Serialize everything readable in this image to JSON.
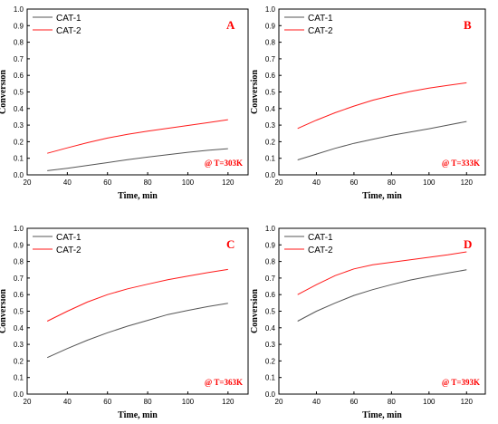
{
  "colors": {
    "CAT-1": "#555555",
    "CAT-2": "#ff1a1a",
    "annotation": "#ff0000",
    "axis": "#000000"
  },
  "chart_data": [
    {
      "type": "line",
      "panel": "A",
      "annotation": "@ T=303K",
      "xlabel": "Time, min",
      "ylabel": "Conversion",
      "xlim": [
        20,
        130
      ],
      "ylim": [
        0,
        1.0
      ],
      "xticks": [
        20,
        40,
        60,
        80,
        100,
        120
      ],
      "yticks": [
        0.0,
        0.1,
        0.2,
        0.3,
        0.4,
        0.5,
        0.6,
        0.7,
        0.8,
        0.9,
        1.0
      ],
      "legend_position": "top-left",
      "series": [
        {
          "name": "CAT-1",
          "x": [
            30,
            40,
            50,
            60,
            70,
            80,
            90,
            100,
            110,
            120
          ],
          "y": [
            0.025,
            0.04,
            0.057,
            0.074,
            0.091,
            0.107,
            0.122,
            0.136,
            0.148,
            0.158
          ]
        },
        {
          "name": "CAT-2",
          "x": [
            30,
            40,
            50,
            60,
            70,
            80,
            90,
            100,
            110,
            120
          ],
          "y": [
            0.13,
            0.163,
            0.194,
            0.222,
            0.245,
            0.264,
            0.281,
            0.298,
            0.315,
            0.333
          ]
        }
      ]
    },
    {
      "type": "line",
      "panel": "B",
      "annotation": "@ T=333K",
      "xlabel": "Time, min",
      "ylabel": "Conversion",
      "xlim": [
        20,
        130
      ],
      "ylim": [
        0,
        1.0
      ],
      "xticks": [
        20,
        40,
        60,
        80,
        100,
        120
      ],
      "yticks": [
        0.0,
        0.1,
        0.2,
        0.3,
        0.4,
        0.5,
        0.6,
        0.7,
        0.8,
        0.9,
        1.0
      ],
      "legend_position": "top-left",
      "series": [
        {
          "name": "CAT-1",
          "x": [
            30,
            40,
            50,
            60,
            70,
            80,
            90,
            100,
            110,
            120
          ],
          "y": [
            0.09,
            0.125,
            0.16,
            0.19,
            0.215,
            0.238,
            0.258,
            0.278,
            0.3,
            0.322
          ]
        },
        {
          "name": "CAT-2",
          "x": [
            30,
            40,
            50,
            60,
            70,
            80,
            90,
            100,
            110,
            120
          ],
          "y": [
            0.28,
            0.33,
            0.375,
            0.415,
            0.45,
            0.478,
            0.503,
            0.523,
            0.54,
            0.555
          ]
        }
      ]
    },
    {
      "type": "line",
      "panel": "C",
      "annotation": "@ T=363K",
      "xlabel": "Time, min",
      "ylabel": "Conversion",
      "xlim": [
        20,
        130
      ],
      "ylim": [
        0,
        1.0
      ],
      "xticks": [
        20,
        40,
        60,
        80,
        100,
        120
      ],
      "yticks": [
        0.0,
        0.1,
        0.2,
        0.3,
        0.4,
        0.5,
        0.6,
        0.7,
        0.8,
        0.9,
        1.0
      ],
      "legend_position": "top-left",
      "series": [
        {
          "name": "CAT-1",
          "x": [
            30,
            40,
            50,
            60,
            70,
            80,
            90,
            100,
            110,
            120
          ],
          "y": [
            0.22,
            0.275,
            0.325,
            0.37,
            0.41,
            0.445,
            0.48,
            0.505,
            0.528,
            0.548
          ]
        },
        {
          "name": "CAT-2",
          "x": [
            30,
            40,
            50,
            60,
            70,
            80,
            90,
            100,
            110,
            120
          ],
          "y": [
            0.44,
            0.5,
            0.555,
            0.6,
            0.635,
            0.663,
            0.69,
            0.712,
            0.733,
            0.752
          ]
        }
      ]
    },
    {
      "type": "line",
      "panel": "D",
      "annotation": "@ T=393K",
      "xlabel": "Time, min",
      "ylabel": "Conversion",
      "xlim": [
        20,
        130
      ],
      "ylim": [
        0,
        1.0
      ],
      "xticks": [
        20,
        40,
        60,
        80,
        100,
        120
      ],
      "yticks": [
        0.0,
        0.1,
        0.2,
        0.3,
        0.4,
        0.5,
        0.6,
        0.7,
        0.8,
        0.9,
        1.0
      ],
      "legend_position": "top-left",
      "series": [
        {
          "name": "CAT-1",
          "x": [
            30,
            40,
            50,
            60,
            70,
            80,
            90,
            100,
            110,
            120
          ],
          "y": [
            0.44,
            0.5,
            0.55,
            0.595,
            0.63,
            0.66,
            0.688,
            0.71,
            0.73,
            0.75
          ]
        },
        {
          "name": "CAT-2",
          "x": [
            30,
            40,
            50,
            60,
            70,
            80,
            90,
            100,
            110,
            120
          ],
          "y": [
            0.6,
            0.66,
            0.715,
            0.755,
            0.78,
            0.795,
            0.81,
            0.825,
            0.84,
            0.858
          ]
        }
      ]
    }
  ]
}
